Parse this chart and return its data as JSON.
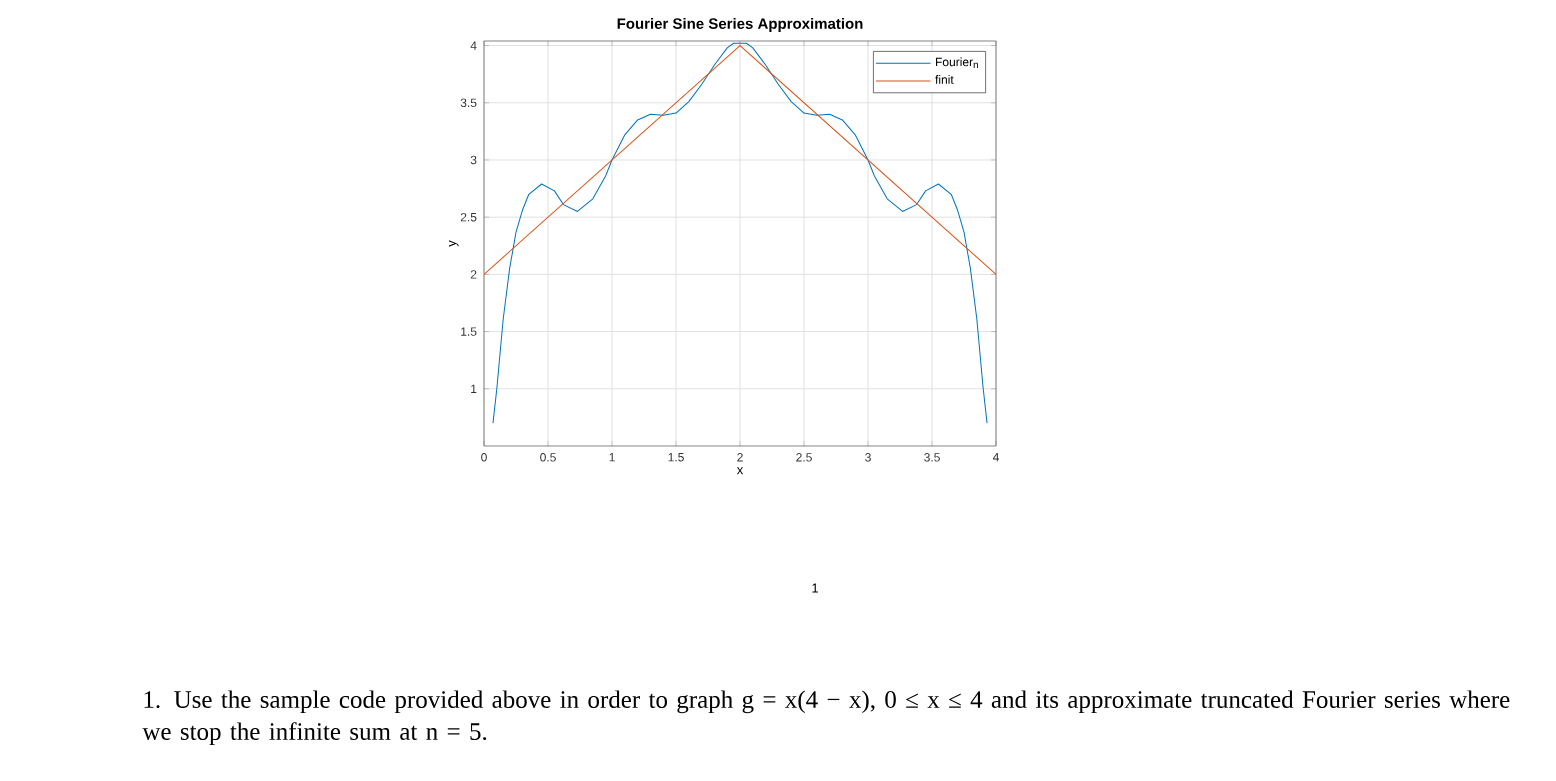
{
  "chart_data": {
    "type": "line",
    "title": "Fourier Sine Series Approximation",
    "xlabel": "x",
    "ylabel": "y",
    "xlim": [
      0,
      4
    ],
    "ylim": [
      0.5,
      4.04
    ],
    "xticks": [
      0,
      0.5,
      1,
      1.5,
      2,
      2.5,
      3,
      3.5,
      4
    ],
    "yticks": [
      1,
      1.5,
      2,
      2.5,
      3,
      3.5,
      4
    ],
    "grid": true,
    "legend": "top right",
    "marker": "none",
    "line_style": "solid",
    "series": [
      {
        "name": "Fourier$_{n}$",
        "color": "#0072bd",
        "x": [
          0.07,
          0.1,
          0.15,
          0.2,
          0.25,
          0.3,
          0.35,
          0.45,
          0.55,
          0.62,
          0.73,
          0.85,
          0.95,
          1.0,
          1.1,
          1.2,
          1.3,
          1.4,
          1.5,
          1.6,
          1.7,
          1.8,
          1.9,
          1.95,
          2.05,
          2.1,
          2.2,
          2.3,
          2.4,
          2.5,
          2.6,
          2.7,
          2.8,
          2.9,
          3.0,
          3.05,
          3.15,
          3.27,
          3.38,
          3.45,
          3.55,
          3.65,
          3.7,
          3.75,
          3.8,
          3.85,
          3.9,
          3.93
        ],
        "values": [
          0.7,
          1.0,
          1.61,
          2.05,
          2.37,
          2.56,
          2.7,
          2.79,
          2.73,
          2.61,
          2.55,
          2.66,
          2.86,
          3.0,
          3.22,
          3.35,
          3.4,
          3.39,
          3.41,
          3.51,
          3.66,
          3.83,
          3.98,
          4.02,
          4.02,
          3.98,
          3.83,
          3.66,
          3.51,
          3.41,
          3.39,
          3.4,
          3.35,
          3.22,
          3.0,
          2.86,
          2.66,
          2.55,
          2.61,
          2.73,
          2.79,
          2.7,
          2.56,
          2.37,
          2.05,
          1.61,
          1.0,
          0.7
        ]
      },
      {
        "name": "finit",
        "color": "#d95319",
        "x": [
          0,
          2,
          4
        ],
        "values": [
          2,
          4,
          2
        ]
      }
    ],
    "annotations": [
      "1",
      "1. Use the sample code provided above in order to graph g = x(4 − x), 0 ≤ x ≤ 4 and its approximate truncated Fourier series where we stop the infinite sum at n = 5."
    ]
  }
}
